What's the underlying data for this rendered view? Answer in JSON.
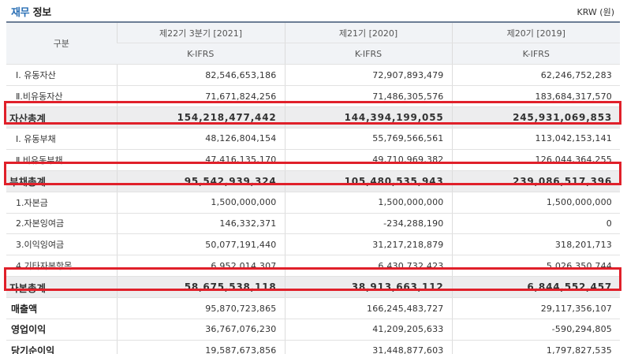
{
  "header": {
    "title_accent": "재무",
    "title_rest": "정보",
    "unit": "KRW (원)"
  },
  "table": {
    "gubun": "구분",
    "periods": [
      "제22기 3분기 [2021]",
      "제21기 [2020]",
      "제20기 [2019]"
    ],
    "standards": [
      "K-IFRS",
      "K-IFRS",
      "K-IFRS"
    ],
    "rows": [
      {
        "label": "Ⅰ. 유동자산",
        "values": [
          "82,546,653,186",
          "72,907,893,479",
          "62,246,752,283"
        ],
        "style": "normal"
      },
      {
        "label": "Ⅱ.비유동자산",
        "values": [
          "71,671,824,256",
          "71,486,305,576",
          "183,684,317,570"
        ],
        "style": "normal"
      },
      {
        "label": "자산총계",
        "values": [
          "154,218,477,442",
          "144,394,199,055",
          "245,931,069,853"
        ],
        "style": "total"
      },
      {
        "label": "Ⅰ. 유동부채",
        "values": [
          "48,126,804,154",
          "55,769,566,561",
          "113,042,153,141"
        ],
        "style": "normal"
      },
      {
        "label": "Ⅱ.비유동부채",
        "values": [
          "47,416,135,170",
          "49,710,969,382",
          "126,044,364,255"
        ],
        "style": "normal"
      },
      {
        "label": "부채총계",
        "values": [
          "95,542,939,324",
          "105,480,535,943",
          "239,086,517,396"
        ],
        "style": "total"
      },
      {
        "label": "1.자본금",
        "values": [
          "1,500,000,000",
          "1,500,000,000",
          "1,500,000,000"
        ],
        "style": "normal"
      },
      {
        "label": "2.자본잉여금",
        "values": [
          "146,332,371",
          "-234,288,190",
          "0"
        ],
        "style": "normal"
      },
      {
        "label": "3.이익잉여금",
        "values": [
          "50,077,191,440",
          "31,217,218,879",
          "318,201,713"
        ],
        "style": "normal"
      },
      {
        "label": "4.기타자본항목",
        "values": [
          "6,952,014,307",
          "6,430,732,423",
          "5,026,350,744"
        ],
        "style": "normal"
      },
      {
        "label": "자본총계",
        "values": [
          "58,675,538,118",
          "38,913,663,112",
          "6,844,552,457"
        ],
        "style": "total"
      },
      {
        "label": "매출액",
        "values": [
          "95,870,723,865",
          "166,245,483,727",
          "29,117,356,107"
        ],
        "style": "bold"
      },
      {
        "label": "영업이익",
        "values": [
          "36,767,076,230",
          "41,209,205,633",
          "-590,294,805"
        ],
        "style": "bold"
      },
      {
        "label": "당기순이익",
        "values": [
          "19,587,673,856",
          "31,448,877,603",
          "1,797,827,535"
        ],
        "style": "bold"
      }
    ]
  },
  "colors": {
    "accent": "#2a6fb5",
    "highlight": "#e0202a",
    "header_bg": "#f1f3f6",
    "total_bg": "#ededee"
  }
}
